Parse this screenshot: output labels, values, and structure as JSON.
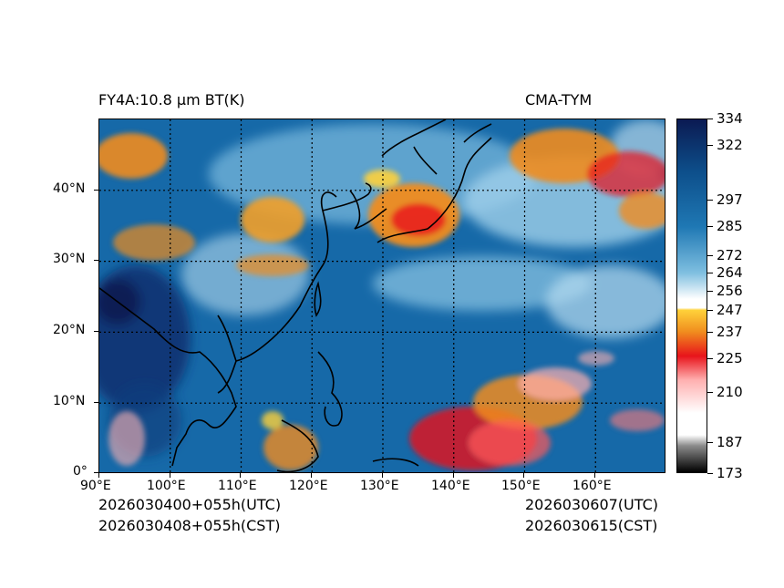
{
  "header": {
    "product_title": "FY4A:10.8 µm BT(K)",
    "agency": "CMA-TYM"
  },
  "footer": {
    "init_utc": "2026030400+055h(UTC)",
    "init_cst": "2026030408+055h(CST)",
    "valid_utc": "2026030607(UTC)",
    "valid_cst": "2026030615(CST)"
  },
  "map": {
    "lon_labels": [
      "90°E",
      "100°E",
      "110°E",
      "120°E",
      "130°E",
      "140°E",
      "150°E",
      "160°E"
    ],
    "lat_labels": [
      "0°",
      "10°N",
      "20°N",
      "30°N",
      "40°N"
    ],
    "lon_range": [
      90,
      170
    ],
    "lat_range": [
      0,
      50
    ],
    "gridlines": true
  },
  "colorbar": {
    "ticks": [
      "334",
      "322",
      "297",
      "285",
      "272",
      "264",
      "256",
      "247",
      "237",
      "225",
      "210",
      "187",
      "173"
    ],
    "tick_values": [
      334,
      322,
      297,
      285,
      272,
      264,
      256,
      247,
      237,
      225,
      210,
      187,
      173
    ],
    "range": [
      173,
      334
    ],
    "colors": {
      "deep_navy": "#0b1a52",
      "dark_blue": "#0d4f8b",
      "mid_blue": "#1f78b4",
      "light_blue": "#7fbfe0",
      "white": "#ffffff",
      "yellow": "#ffd23a",
      "orange": "#f08c1e",
      "red": "#e8141b",
      "pink": "#ffb0b0",
      "gray": "#8a8a8a",
      "black": "#000000"
    }
  }
}
